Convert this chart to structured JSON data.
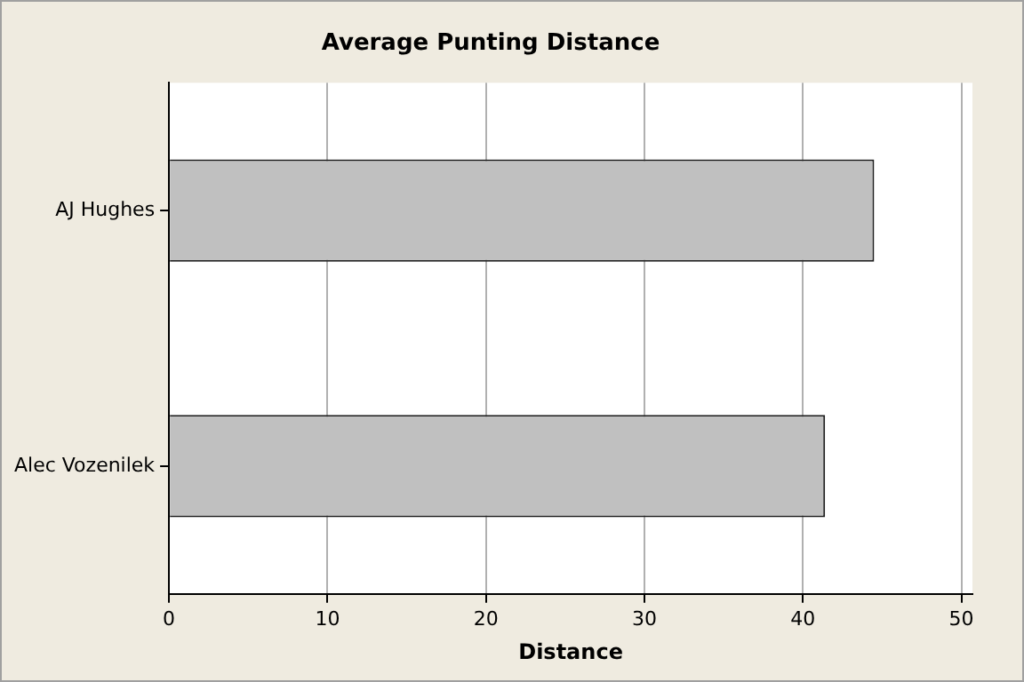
{
  "chart_data": {
    "type": "bar",
    "orientation": "horizontal",
    "title": "Average Punting Distance",
    "xlabel": "Distance",
    "categories": [
      "AJ Hughes",
      "Alec Vozenilek"
    ],
    "values": [
      44.5,
      41.4
    ],
    "color": "#c0c0c0",
    "xlim": [
      0,
      50.7
    ],
    "xticks": [
      0,
      10,
      20,
      30,
      40,
      50
    ],
    "grid": "x",
    "legend": false
  }
}
